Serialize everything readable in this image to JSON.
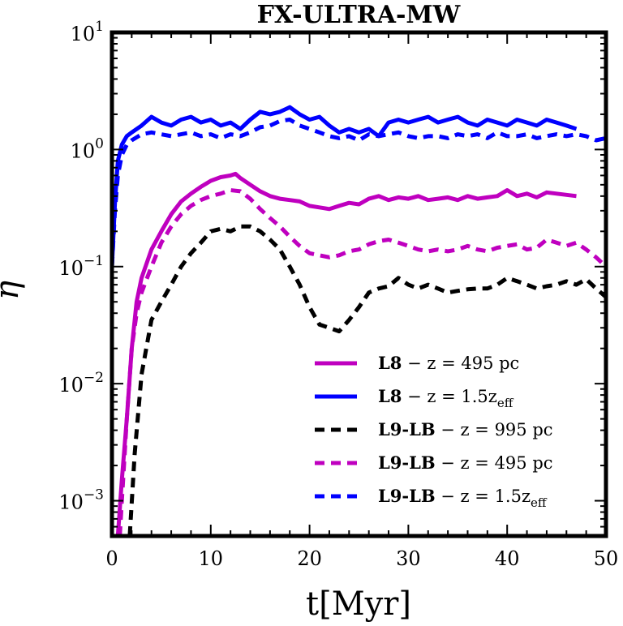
{
  "chart_data": {
    "type": "line",
    "title": "FX-ULTRA-MW",
    "xlabel": "t[Myr]",
    "ylabel": "η",
    "xlim": [
      0,
      50
    ],
    "ylim": [
      0.0005,
      10
    ],
    "yscale": "log",
    "x_ticks": [
      0,
      10,
      20,
      30,
      40,
      50
    ],
    "y_ticks": [
      {
        "value": 0.001,
        "base": "10",
        "exp": "−3"
      },
      {
        "value": 0.01,
        "base": "10",
        "exp": "−2"
      },
      {
        "value": 0.1,
        "base": "10",
        "exp": "−1"
      },
      {
        "value": 1,
        "base": "10",
        "exp": "0"
      },
      {
        "value": 10,
        "base": "10",
        "exp": "1"
      }
    ],
    "grid": false,
    "legend_position": "lower-right",
    "series": [
      {
        "name": "L8 − z = 495 pc",
        "legend": {
          "bold": "L8",
          "rest": " − z = 495 pc",
          "sub": ""
        },
        "color": "#bf00bf",
        "style": "solid",
        "x": [
          0.6,
          1,
          1.5,
          2,
          2.5,
          3,
          4,
          5,
          6,
          7,
          8,
          9,
          10,
          11,
          12,
          12.5,
          13,
          14,
          15,
          16,
          17,
          18,
          19,
          20,
          21,
          22,
          23,
          24,
          25,
          26,
          27,
          28,
          29,
          30,
          31,
          32,
          33,
          34,
          35,
          36,
          37,
          38,
          39,
          40,
          41,
          42,
          43,
          44,
          45,
          46,
          47
        ],
        "y": [
          0.0005,
          0.0015,
          0.005,
          0.02,
          0.05,
          0.08,
          0.14,
          0.2,
          0.28,
          0.36,
          0.42,
          0.48,
          0.54,
          0.58,
          0.6,
          0.62,
          0.57,
          0.5,
          0.44,
          0.4,
          0.38,
          0.37,
          0.36,
          0.33,
          0.32,
          0.31,
          0.33,
          0.35,
          0.34,
          0.38,
          0.4,
          0.37,
          0.39,
          0.38,
          0.4,
          0.37,
          0.38,
          0.39,
          0.37,
          0.4,
          0.38,
          0.39,
          0.4,
          0.45,
          0.4,
          0.42,
          0.39,
          0.43,
          0.42,
          0.41,
          0.4
        ]
      },
      {
        "name": "L8 − z = 1.5zeff",
        "legend": {
          "bold": "L8",
          "rest": " − z = 1.5z",
          "sub": "eff"
        },
        "color": "#0000ff",
        "style": "solid",
        "x": [
          0,
          0.3,
          0.6,
          1,
          1.5,
          2,
          3,
          4,
          5,
          6,
          7,
          8,
          9,
          10,
          11,
          12,
          13,
          14,
          15,
          16,
          17,
          18,
          19,
          20,
          21,
          22,
          23,
          24,
          25,
          26,
          27,
          28,
          29,
          30,
          31,
          32,
          33,
          34,
          35,
          36,
          37,
          38,
          39,
          40,
          41,
          42,
          43,
          44,
          45,
          46,
          47
        ],
        "y": [
          0.1,
          0.35,
          0.8,
          1.1,
          1.3,
          1.4,
          1.6,
          1.9,
          1.7,
          1.6,
          1.8,
          1.9,
          1.7,
          1.8,
          1.6,
          1.7,
          1.5,
          1.8,
          2.1,
          2.0,
          2.1,
          2.3,
          2.0,
          1.8,
          1.9,
          1.6,
          1.4,
          1.5,
          1.4,
          1.5,
          1.3,
          1.7,
          1.8,
          1.7,
          1.8,
          1.9,
          1.7,
          1.8,
          1.9,
          1.7,
          1.6,
          1.8,
          1.7,
          1.6,
          1.8,
          1.7,
          1.6,
          1.8,
          1.7,
          1.6,
          1.5
        ]
      },
      {
        "name": "L9-LB − z = 995 pc",
        "legend": {
          "bold": "L9-LB",
          "rest": " − z = 995 pc",
          "sub": ""
        },
        "color": "#000000",
        "style": "dashed",
        "x": [
          1.8,
          2.3,
          3,
          4,
          5,
          6,
          7,
          8,
          9,
          10,
          11,
          12,
          13,
          14,
          15,
          16,
          17,
          18,
          19,
          20,
          21,
          22,
          23,
          24,
          25,
          26,
          27,
          28,
          29,
          30,
          31,
          32,
          33,
          34,
          35,
          36,
          37,
          38,
          39,
          40,
          41,
          42,
          43,
          44,
          45,
          46,
          47,
          48,
          49,
          50
        ],
        "y": [
          0.0005,
          0.0025,
          0.012,
          0.035,
          0.05,
          0.07,
          0.1,
          0.13,
          0.16,
          0.2,
          0.21,
          0.2,
          0.22,
          0.22,
          0.2,
          0.17,
          0.14,
          0.1,
          0.07,
          0.045,
          0.032,
          0.03,
          0.028,
          0.035,
          0.045,
          0.06,
          0.065,
          0.068,
          0.08,
          0.07,
          0.065,
          0.07,
          0.065,
          0.06,
          0.062,
          0.064,
          0.065,
          0.065,
          0.07,
          0.08,
          0.075,
          0.07,
          0.065,
          0.068,
          0.07,
          0.075,
          0.07,
          0.078,
          0.065,
          0.055
        ]
      },
      {
        "name": "L9-LB − z = 495 pc",
        "legend": {
          "bold": "L9-LB",
          "rest": " − z = 495 pc",
          "sub": ""
        },
        "color": "#bf00bf",
        "style": "dashed",
        "x": [
          0.8,
          1,
          1.5,
          2,
          2.5,
          3,
          4,
          5,
          6,
          7,
          8,
          9,
          10,
          11,
          12,
          13,
          14,
          15,
          16,
          17,
          18,
          19,
          20,
          21,
          22,
          23,
          24,
          25,
          26,
          27,
          28,
          29,
          30,
          31,
          32,
          33,
          34,
          35,
          36,
          37,
          38,
          39,
          40,
          41,
          42,
          43,
          44,
          45,
          46,
          47,
          48,
          49,
          50
        ],
        "y": [
          0.0005,
          0.001,
          0.005,
          0.02,
          0.04,
          0.06,
          0.1,
          0.16,
          0.22,
          0.28,
          0.33,
          0.37,
          0.4,
          0.42,
          0.45,
          0.44,
          0.38,
          0.31,
          0.26,
          0.22,
          0.18,
          0.15,
          0.13,
          0.125,
          0.12,
          0.125,
          0.135,
          0.14,
          0.155,
          0.165,
          0.17,
          0.16,
          0.15,
          0.14,
          0.135,
          0.14,
          0.135,
          0.14,
          0.15,
          0.14,
          0.135,
          0.145,
          0.15,
          0.155,
          0.14,
          0.145,
          0.17,
          0.16,
          0.15,
          0.16,
          0.14,
          0.12,
          0.1
        ]
      },
      {
        "name": "L9-LB − z = 1.5zeff",
        "legend": {
          "bold": "L9-LB",
          "rest": " − z = 1.5z",
          "sub": "eff"
        },
        "color": "#0000ff",
        "style": "dashed",
        "x": [
          0,
          0.3,
          0.6,
          1,
          1.5,
          2,
          3,
          4,
          5,
          6,
          7,
          8,
          9,
          10,
          11,
          12,
          13,
          14,
          15,
          16,
          17,
          18,
          19,
          20,
          21,
          22,
          23,
          24,
          25,
          26,
          27,
          28,
          29,
          30,
          31,
          32,
          33,
          34,
          35,
          36,
          37,
          38,
          39,
          40,
          41,
          42,
          43,
          44,
          45,
          46,
          47,
          48,
          49,
          50
        ],
        "y": [
          0.1,
          0.3,
          0.6,
          0.9,
          1.1,
          1.2,
          1.35,
          1.4,
          1.35,
          1.3,
          1.35,
          1.4,
          1.3,
          1.35,
          1.25,
          1.35,
          1.3,
          1.4,
          1.55,
          1.6,
          1.75,
          1.8,
          1.6,
          1.5,
          1.4,
          1.3,
          1.25,
          1.3,
          1.2,
          1.35,
          1.3,
          1.35,
          1.4,
          1.3,
          1.25,
          1.3,
          1.3,
          1.25,
          1.35,
          1.3,
          1.35,
          1.25,
          1.4,
          1.3,
          1.3,
          1.35,
          1.25,
          1.3,
          1.35,
          1.3,
          1.35,
          1.3,
          1.2,
          1.25
        ]
      }
    ]
  }
}
